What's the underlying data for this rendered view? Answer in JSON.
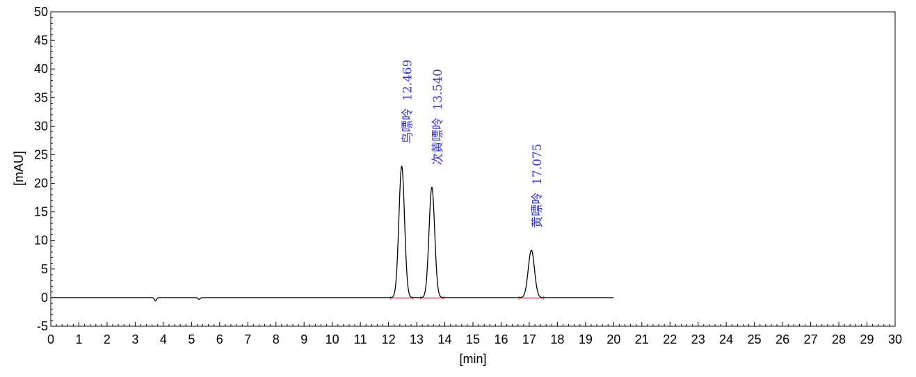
{
  "chart_data": {
    "type": "line",
    "xlabel": "[min]",
    "ylabel": "[mAU]",
    "xlim": [
      0,
      30
    ],
    "ylim": [
      -5,
      50
    ],
    "x_ticks": [
      0,
      1,
      2,
      3,
      4,
      5,
      6,
      7,
      8,
      9,
      10,
      11,
      12,
      13,
      14,
      15,
      16,
      17,
      18,
      19,
      20,
      21,
      22,
      23,
      24,
      25,
      26,
      27,
      28,
      29,
      30
    ],
    "y_ticks": [
      -5,
      0,
      5,
      10,
      15,
      20,
      25,
      30,
      35,
      40,
      45,
      50
    ],
    "grid": false,
    "legend": "none",
    "signal_range": [
      0,
      20
    ],
    "baseline": 0,
    "dips": [
      {
        "x": 3.72,
        "depth": 0.6
      },
      {
        "x": 5.27,
        "depth": 0.3
      }
    ],
    "peaks": [
      {
        "label": "鸟嘌呤  12.469",
        "x": 12.469,
        "height": 23.0,
        "width": 0.1
      },
      {
        "label": "次黄嘌呤  13.540",
        "x": 13.54,
        "height": 19.3,
        "width": 0.1
      },
      {
        "label": "黄嘌呤  17.075",
        "x": 17.075,
        "height": 8.3,
        "width": 0.11
      }
    ],
    "colors": {
      "trace": "#000000",
      "labels": "#3535d6",
      "baseline_marks": "#e06060",
      "frame": "#000000"
    }
  }
}
